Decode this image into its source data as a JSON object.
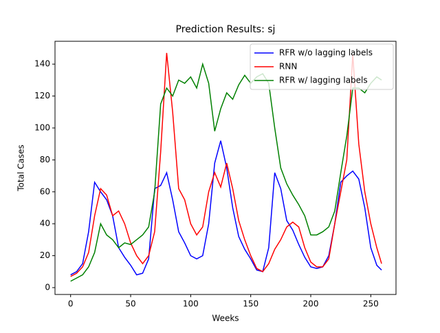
{
  "chart_data": {
    "type": "line",
    "title": "Prediction Results: sj",
    "xlabel": "Weeks",
    "ylabel": "Total Cases",
    "x": [
      0,
      5,
      10,
      15,
      20,
      25,
      30,
      35,
      40,
      45,
      50,
      55,
      60,
      65,
      70,
      75,
      80,
      85,
      90,
      95,
      100,
      105,
      110,
      115,
      120,
      125,
      130,
      135,
      140,
      145,
      150,
      155,
      160,
      165,
      170,
      175,
      180,
      185,
      190,
      195,
      200,
      205,
      210,
      215,
      220,
      225,
      230,
      235,
      240,
      245,
      250,
      255,
      259
    ],
    "series": [
      {
        "name": "RFR w/o lagging labels",
        "color": "#0000ff",
        "values": [
          8,
          10,
          15,
          35,
          66,
          60,
          55,
          45,
          25,
          19,
          14,
          8,
          9,
          18,
          62,
          64,
          72,
          55,
          35,
          28,
          20,
          18,
          20,
          40,
          78,
          92,
          75,
          50,
          32,
          24,
          18,
          11,
          10,
          25,
          72,
          62,
          42,
          36,
          27,
          19,
          13,
          12,
          13,
          20,
          40,
          66,
          70,
          73,
          68,
          50,
          25,
          14,
          11
        ]
      },
      {
        "name": "RNN",
        "color": "#ff0000",
        "values": [
          7,
          9,
          13,
          22,
          45,
          62,
          58,
          45,
          48,
          40,
          28,
          20,
          15,
          20,
          35,
          85,
          147,
          110,
          62,
          55,
          40,
          33,
          38,
          60,
          72,
          63,
          78,
          62,
          42,
          30,
          20,
          12,
          10,
          15,
          24,
          30,
          38,
          41,
          38,
          25,
          16,
          13,
          13,
          18,
          40,
          60,
          80,
          146,
          90,
          60,
          40,
          25,
          15
        ]
      },
      {
        "name": "RFR w/ lagging labels",
        "color": "#008000",
        "values": [
          4,
          6,
          8,
          13,
          22,
          40,
          33,
          30,
          25,
          28,
          27,
          30,
          33,
          38,
          60,
          115,
          125,
          120,
          130,
          128,
          132,
          125,
          140,
          128,
          98,
          112,
          122,
          118,
          127,
          133,
          128,
          132,
          134,
          128,
          100,
          75,
          65,
          58,
          52,
          45,
          33,
          33,
          35,
          38,
          48,
          72,
          95,
          125,
          125,
          122,
          128,
          132,
          130
        ]
      }
    ],
    "xlim": [
      -13,
      271
    ],
    "ylim": [
      -4.3,
      154.3
    ],
    "xticks": [
      0,
      50,
      100,
      150,
      200,
      250
    ],
    "yticks": [
      0,
      20,
      40,
      60,
      80,
      100,
      120,
      140
    ],
    "legend": "upper right"
  }
}
